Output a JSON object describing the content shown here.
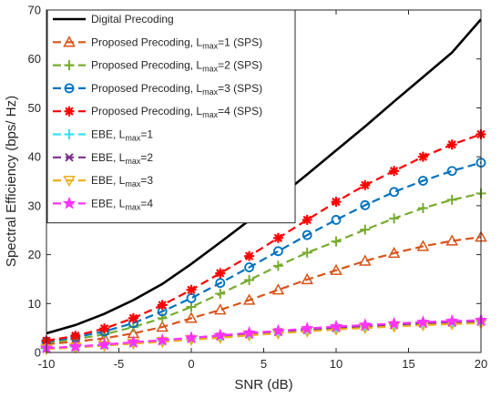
{
  "chart_data": {
    "type": "line",
    "title": "",
    "xlabel": "SNR (dB)",
    "ylabel": "Spectral Efficiency (bps/ Hz)",
    "xlim": [
      -10,
      20
    ],
    "ylim": [
      0,
      70
    ],
    "xticks": [
      -10,
      -5,
      0,
      5,
      10,
      15,
      20
    ],
    "yticks": [
      0,
      10,
      20,
      30,
      40,
      50,
      60,
      70
    ],
    "xtick_labels": [
      "-10",
      "-5",
      "0",
      "5",
      "10",
      "15",
      "20"
    ],
    "ytick_labels": [
      "0",
      "10",
      "20",
      "30",
      "40",
      "50",
      "60",
      "70"
    ],
    "grid": false,
    "legend_position": "top-left",
    "x": [
      -10,
      -8,
      -6,
      -4,
      -2,
      0,
      2,
      4,
      6,
      8,
      10,
      12,
      14,
      16,
      18,
      20
    ],
    "series": [
      {
        "legend_label": "Digital Precoding",
        "legend_sub": "",
        "legend_suffix": "",
        "color": "#000000",
        "dash": "solid",
        "marker": "none",
        "values": [
          3.9,
          5.6,
          7.9,
          10.7,
          14.0,
          18.1,
          22.5,
          27.0,
          31.6,
          36.4,
          41.3,
          46.2,
          51.3,
          56.3,
          61.3,
          68.1
        ]
      },
      {
        "legend_label": "Proposed Precoding, L",
        "legend_sub": "max",
        "legend_suffix": "=1 (SPS)",
        "color": "#d95319",
        "dash": "dashed",
        "marker": "triangle-up",
        "values": [
          1.7,
          2.2,
          2.9,
          3.9,
          5.2,
          7.0,
          8.7,
          10.7,
          12.8,
          14.9,
          16.8,
          18.7,
          20.3,
          21.7,
          22.8,
          23.6
        ]
      },
      {
        "legend_label": "Proposed Precoding, L",
        "legend_sub": "max",
        "legend_suffix": "=2 (SPS)",
        "color": "#77ac30",
        "dash": "dashed",
        "marker": "plus",
        "values": [
          2.0,
          2.7,
          3.7,
          5.2,
          7.0,
          9.3,
          12.0,
          14.8,
          17.7,
          20.4,
          22.7,
          25.1,
          27.4,
          29.5,
          31.2,
          32.5
        ]
      },
      {
        "legend_label": "Proposed Precoding, L",
        "legend_sub": "max",
        "legend_suffix": "=3 (SPS)",
        "color": "#0072bd",
        "dash": "dashed",
        "marker": "circle",
        "values": [
          2.2,
          3.1,
          4.3,
          6.0,
          8.4,
          11.1,
          14.2,
          17.4,
          20.7,
          24.0,
          27.1,
          30.1,
          32.8,
          35.1,
          37.1,
          38.8
        ]
      },
      {
        "legend_label": "Proposed Precoding, L",
        "legend_sub": "max",
        "legend_suffix": "=4 (SPS)",
        "color": "#ff0000",
        "dash": "dashed",
        "marker": "asterisk",
        "values": [
          2.4,
          3.4,
          4.9,
          7.0,
          9.7,
          12.8,
          16.2,
          19.7,
          23.4,
          27.1,
          30.8,
          34.2,
          37.1,
          40.0,
          42.5,
          44.6
        ]
      },
      {
        "legend_label": "EBE, L",
        "legend_sub": "max",
        "legend_suffix": "=1",
        "color": "#33e0ff",
        "dash": "dashed",
        "marker": "plus",
        "values": [
          0.8,
          1.1,
          1.5,
          1.9,
          2.4,
          2.8,
          3.3,
          3.7,
          4.2,
          4.6,
          5.0,
          5.3,
          5.6,
          5.9,
          6.1,
          6.3
        ]
      },
      {
        "legend_label": "EBE, L",
        "legend_sub": "max",
        "legend_suffix": "=2",
        "color": "#7e2f8e",
        "dash": "dashed",
        "marker": "x",
        "values": [
          0.8,
          1.1,
          1.5,
          1.9,
          2.4,
          2.8,
          3.3,
          3.7,
          4.2,
          4.6,
          5.0,
          5.3,
          5.6,
          5.9,
          6.1,
          6.3
        ]
      },
      {
        "legend_label": "EBE, L",
        "legend_sub": "max",
        "legend_suffix": "=3",
        "color": "#edb120",
        "dash": "dashed",
        "marker": "triangle-down",
        "values": [
          0.7,
          1.0,
          1.4,
          1.8,
          2.2,
          2.6,
          3.0,
          3.5,
          3.9,
          4.3,
          4.7,
          5.0,
          5.3,
          5.6,
          5.8,
          6.0
        ]
      },
      {
        "legend_label": "EBE, L",
        "legend_sub": "max",
        "legend_suffix": "=4",
        "color": "#ff33ff",
        "dash": "dashed",
        "marker": "star",
        "values": [
          0.9,
          1.2,
          1.6,
          2.1,
          2.5,
          3.0,
          3.5,
          4.0,
          4.4,
          4.9,
          5.3,
          5.6,
          5.9,
          6.2,
          6.4,
          6.6
        ]
      }
    ]
  }
}
